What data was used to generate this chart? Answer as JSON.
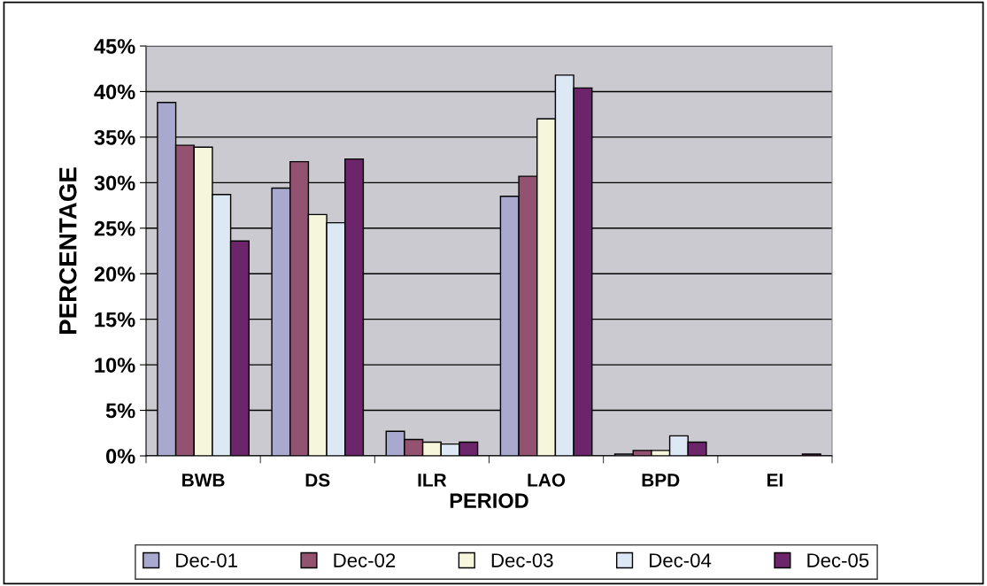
{
  "chart_data": {
    "type": "bar",
    "xlabel": "PERIOD",
    "ylabel": "PERCENTAGE",
    "categories": [
      "BWB",
      "DS",
      "ILR",
      "LAO",
      "BPD",
      "EI"
    ],
    "series": [
      {
        "name": "Dec-01",
        "color": "#a9a8cf",
        "values": [
          38.8,
          29.4,
          2.7,
          28.5,
          0.2,
          null
        ]
      },
      {
        "name": "Dec-02",
        "color": "#935370",
        "values": [
          34.1,
          32.3,
          1.8,
          30.7,
          0.6,
          null
        ]
      },
      {
        "name": "Dec-03",
        "color": "#f6f6dc",
        "values": [
          33.9,
          26.5,
          1.5,
          37.0,
          0.6,
          null
        ]
      },
      {
        "name": "Dec-04",
        "color": "#dce8f4",
        "values": [
          28.7,
          25.6,
          1.3,
          41.8,
          2.2,
          null
        ]
      },
      {
        "name": "Dec-05",
        "color": "#6c256b",
        "values": [
          23.6,
          32.6,
          1.5,
          40.4,
          1.5,
          0.2
        ]
      }
    ],
    "ylim": [
      0,
      45
    ],
    "yticks": [
      {
        "value": 0,
        "label": "0%"
      },
      {
        "value": 5,
        "label": "5%"
      },
      {
        "value": 10,
        "label": "10%"
      },
      {
        "value": 15,
        "label": "15%"
      },
      {
        "value": 20,
        "label": "20%"
      },
      {
        "value": 25,
        "label": "25%"
      },
      {
        "value": 30,
        "label": "30%"
      },
      {
        "value": 35,
        "label": "35%"
      },
      {
        "value": 40,
        "label": "40%"
      },
      {
        "value": 45,
        "label": "45%"
      }
    ],
    "grid": "y",
    "legend": "bottom"
  }
}
